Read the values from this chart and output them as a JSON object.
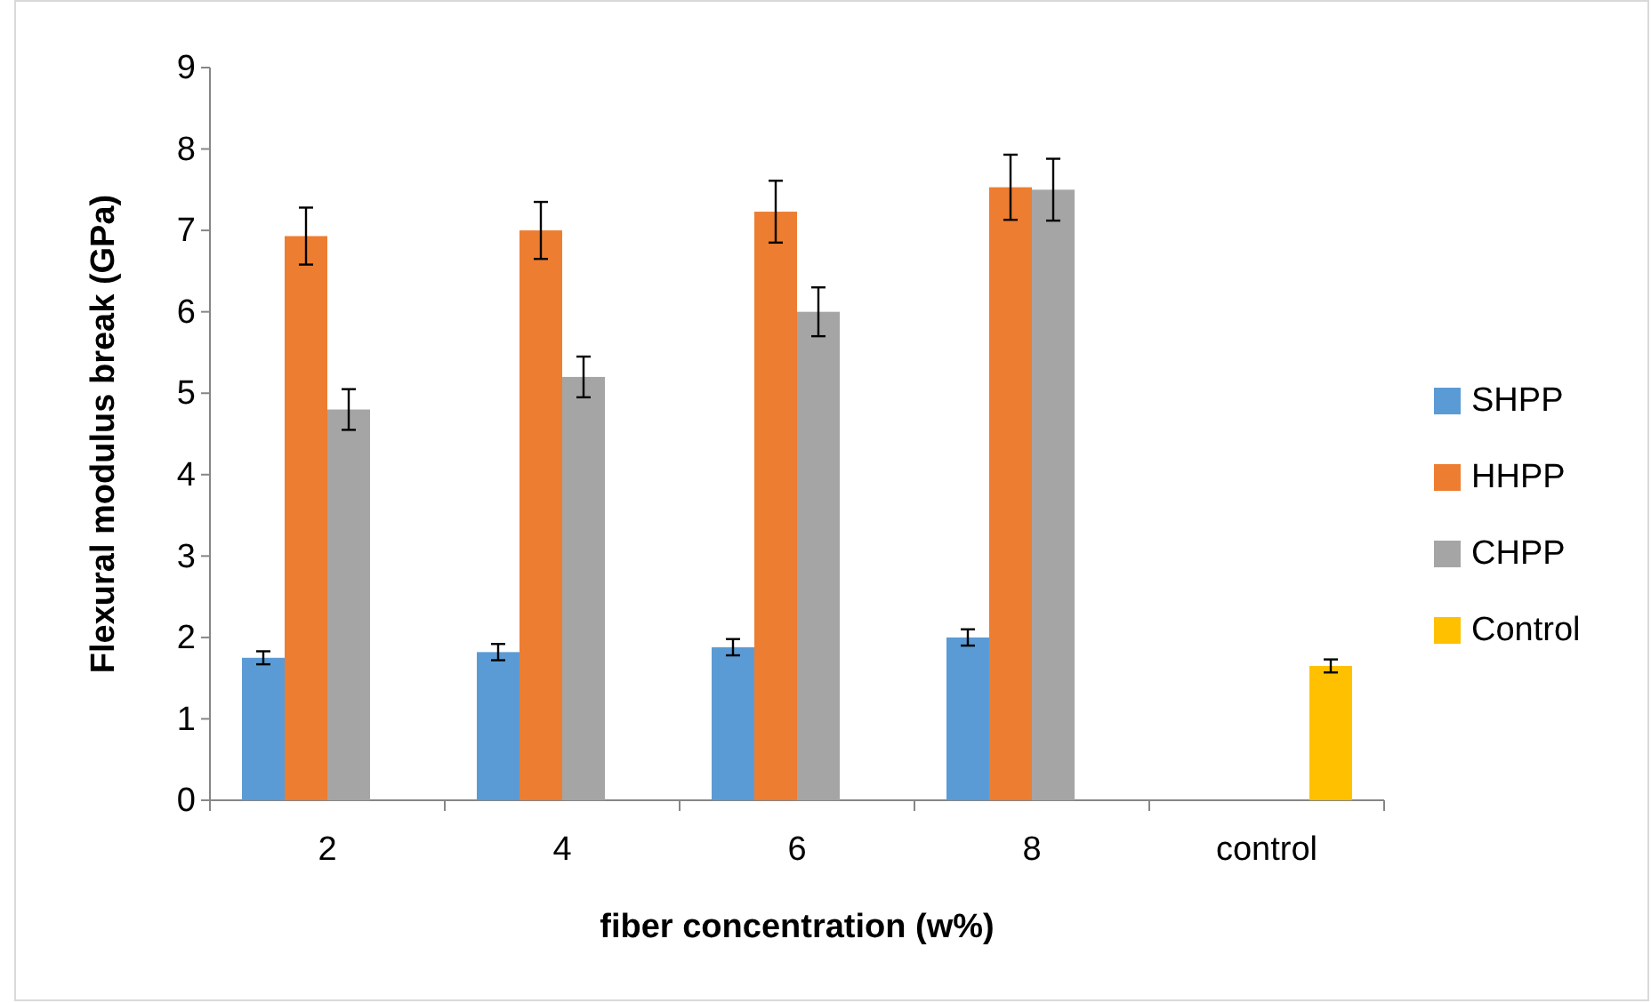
{
  "chart_data": {
    "type": "bar",
    "xlabel": "fiber concentration (w%)",
    "ylabel": "Flexural modulus break (GPa)",
    "categories": [
      "2",
      "4",
      "6",
      "8",
      "control"
    ],
    "series": [
      {
        "name": "SHPP",
        "color": "#5b9bd5",
        "values": [
          1.75,
          1.82,
          1.88,
          2.0,
          null
        ],
        "errors": [
          0.08,
          0.1,
          0.1,
          0.1,
          null
        ]
      },
      {
        "name": "HHPP",
        "color": "#ed7d31",
        "values": [
          6.93,
          7.0,
          7.23,
          7.53,
          null
        ],
        "errors": [
          0.35,
          0.35,
          0.38,
          0.4,
          null
        ]
      },
      {
        "name": "CHPP",
        "color": "#a5a5a5",
        "values": [
          4.8,
          5.2,
          6.0,
          7.5,
          null
        ],
        "errors": [
          0.25,
          0.25,
          0.3,
          0.38,
          null
        ]
      },
      {
        "name": "Control",
        "color": "#ffc000",
        "values": [
          null,
          null,
          null,
          null,
          1.65
        ],
        "errors": [
          null,
          null,
          null,
          null,
          0.08
        ]
      }
    ],
    "ylim": [
      0,
      9
    ],
    "yticks": [
      0,
      1,
      2,
      3,
      4,
      5,
      6,
      7,
      8,
      9
    ],
    "grid": false,
    "legend": "right"
  }
}
